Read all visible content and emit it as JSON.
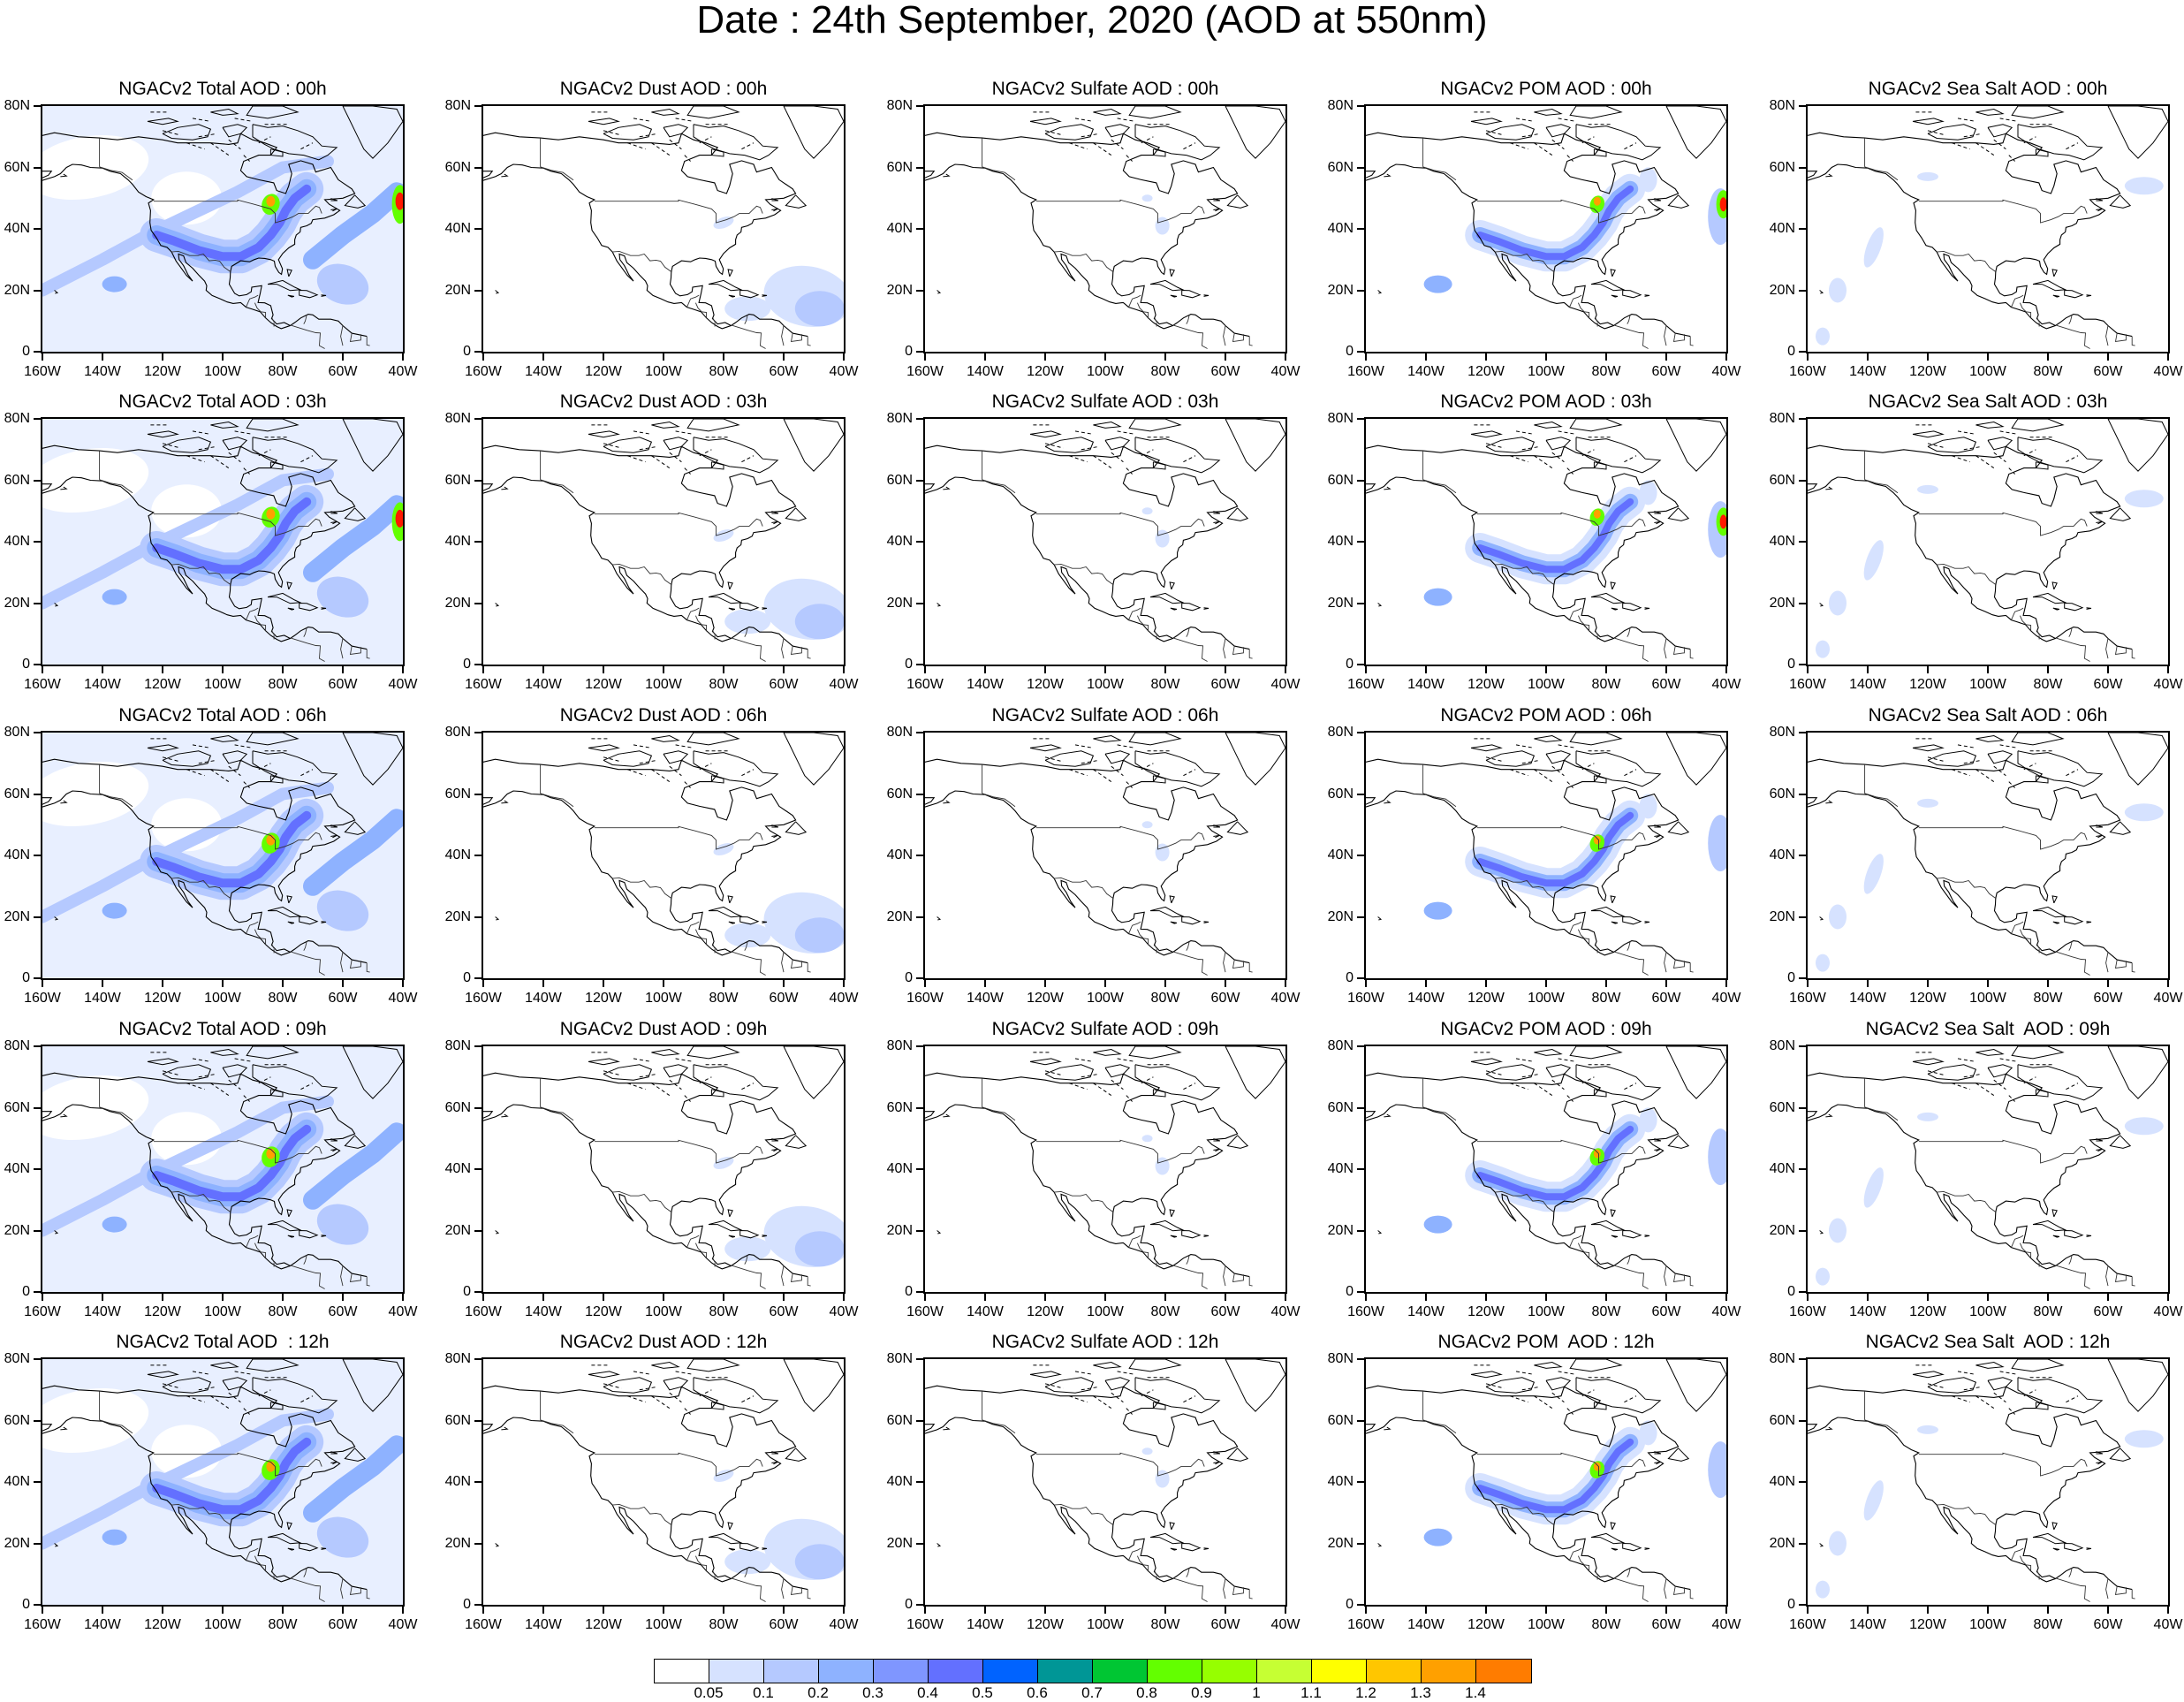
{
  "title": "Date : 24th  September, 2020 (AOD at 550nm)",
  "panels": [
    [
      "NGACv2 Total AOD : 00h",
      "NGACv2 Dust AOD : 00h",
      "NGACv2 Sulfate AOD : 00h",
      "NGACv2 POM AOD : 00h",
      "NGACv2 Sea Salt AOD : 00h"
    ],
    [
      "NGACv2 Total AOD : 03h",
      "NGACv2 Dust AOD : 03h",
      "NGACv2 Sulfate AOD : 03h",
      "NGACv2 POM AOD : 03h",
      "NGACv2 Sea Salt AOD : 03h"
    ],
    [
      "NGACv2 Total AOD : 06h",
      "NGACv2 Dust AOD : 06h",
      "NGACv2 Sulfate AOD : 06h",
      "NGACv2 POM AOD : 06h",
      "NGACv2 Sea Salt AOD : 06h"
    ],
    [
      "NGACv2 Total AOD : 09h",
      "NGACv2 Dust AOD : 09h",
      "NGACv2 Sulfate AOD : 09h",
      "NGACv2 POM AOD : 09h",
      "NGACv2 Sea Salt  AOD : 09h"
    ],
    [
      "NGACv2 Total AOD  : 12h",
      "NGACv2 Dust AOD : 12h",
      "NGACv2 Sulfate AOD : 12h",
      "NGACv2 POM  AOD : 12h",
      "NGACv2 Sea Salt  AOD : 12h"
    ]
  ],
  "lat_labels": [
    "80N",
    "60N",
    "40N",
    "20N",
    "0"
  ],
  "lon_labels": [
    "160W",
    "140W",
    "120W",
    "100W",
    "80W",
    "60W",
    "40W"
  ],
  "colorbar": {
    "colors": [
      "#ffffff",
      "#d6e2ff",
      "#b5c9ff",
      "#8eb2ff",
      "#7f96ff",
      "#6370ff",
      "#0063ff",
      "#009696",
      "#00c633",
      "#63ff00",
      "#96ff00",
      "#c6ff33",
      "#ffff00",
      "#ffc600",
      "#ffa000",
      "#ff7c00",
      "#ff1900"
    ],
    "labels": [
      "0.05",
      "0.1",
      "0.2",
      "0.3",
      "0.4",
      "0.5",
      "0.6",
      "0.7",
      "0.8",
      "0.9",
      "1",
      "1.1",
      "1.2",
      "1.3",
      "1.4"
    ]
  }
}
